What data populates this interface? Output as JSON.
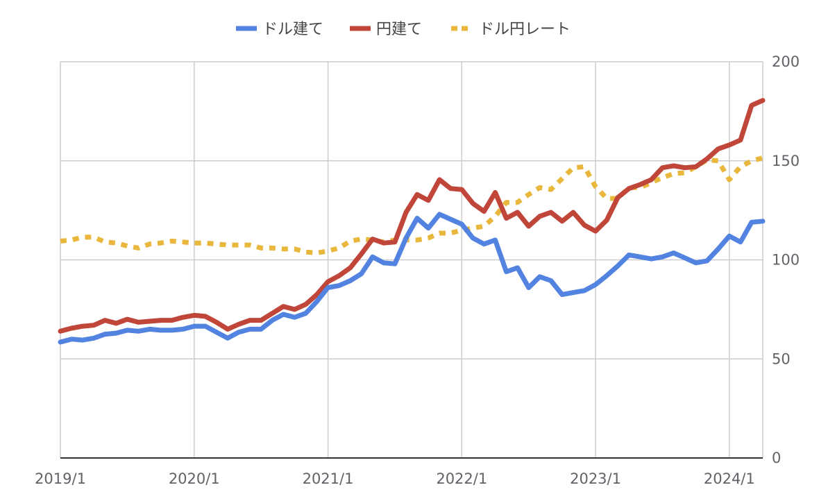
{
  "chart_data": {
    "type": "line",
    "legend": {
      "placement": "top-center",
      "items": [
        {
          "label": "ドル建て",
          "color": "#5283e0",
          "style": "solid"
        },
        {
          "label": "円建て",
          "color": "#c0463a",
          "style": "solid"
        },
        {
          "label": "ドル円レート",
          "color": "#e8b73c",
          "style": "dotted"
        }
      ]
    },
    "x_ticks": [
      "2019/1",
      "2020/1",
      "2021/1",
      "2022/1",
      "2023/1",
      "2024/1"
    ],
    "y_ticks": [
      "0",
      "50",
      "100",
      "150",
      "200"
    ],
    "ylim": [
      0,
      200
    ],
    "xlim": [
      "2019-01",
      "2024-04"
    ],
    "y_axis_position": "right",
    "grid": true,
    "x": [
      "2019-01",
      "2019-02",
      "2019-03",
      "2019-04",
      "2019-05",
      "2019-06",
      "2019-07",
      "2019-08",
      "2019-09",
      "2019-10",
      "2019-11",
      "2019-12",
      "2020-01",
      "2020-02",
      "2020-03",
      "2020-04",
      "2020-05",
      "2020-06",
      "2020-07",
      "2020-08",
      "2020-09",
      "2020-10",
      "2020-11",
      "2020-12",
      "2021-01",
      "2021-02",
      "2021-03",
      "2021-04",
      "2021-05",
      "2021-06",
      "2021-07",
      "2021-08",
      "2021-09",
      "2021-10",
      "2021-11",
      "2021-12",
      "2022-01",
      "2022-02",
      "2022-03",
      "2022-04",
      "2022-05",
      "2022-06",
      "2022-07",
      "2022-08",
      "2022-09",
      "2022-10",
      "2022-11",
      "2022-12",
      "2023-01",
      "2023-02",
      "2023-03",
      "2023-04",
      "2023-05",
      "2023-06",
      "2023-07",
      "2023-08",
      "2023-09",
      "2023-10",
      "2023-11",
      "2023-12",
      "2024-01",
      "2024-02",
      "2024-03",
      "2024-04"
    ],
    "series": [
      {
        "name": "ドル建て",
        "color": "#5283e0",
        "values": [
          58.5,
          60,
          59.5,
          60.5,
          62.5,
          63,
          64.5,
          64,
          65,
          64.5,
          64.5,
          65,
          66.5,
          66.5,
          63.5,
          60.5,
          63.5,
          65,
          65,
          69.5,
          72.5,
          71,
          73,
          79,
          86,
          87,
          89.5,
          93,
          101.5,
          98.5,
          98,
          111,
          121,
          116,
          123,
          120.5,
          118,
          111,
          108,
          110,
          94,
          96,
          86,
          91.5,
          89.5,
          82.5,
          83.5,
          84.5,
          87.5,
          92,
          97,
          102.5,
          101.5,
          100.5,
          101.5,
          103.5,
          101,
          98.5,
          99.5,
          105.5,
          112,
          109,
          119,
          119.5
        ]
      },
      {
        "name": "円建て",
        "color": "#c0463a",
        "values": [
          64,
          65.5,
          66.5,
          67,
          69.5,
          68,
          70,
          68.5,
          69,
          69.5,
          69.5,
          71,
          72,
          71.5,
          68.5,
          65,
          67.5,
          69.5,
          69.5,
          73,
          76.5,
          75,
          77.5,
          82.5,
          89,
          92,
          96,
          103,
          110.5,
          108.5,
          109,
          124,
          133,
          130,
          140.5,
          136,
          135.5,
          128.5,
          124.5,
          134,
          121,
          124,
          117,
          122,
          124,
          119.5,
          124,
          117.5,
          114.5,
          120,
          131.5,
          136,
          138,
          140.5,
          146.5,
          147.5,
          146.5,
          147,
          151,
          156,
          158,
          160.5,
          178,
          180.5
        ]
      },
      {
        "name": "ドル円レート",
        "color": "#e8b73c",
        "values": [
          109.5,
          110,
          111.5,
          111.5,
          109,
          108.5,
          107,
          106,
          108,
          108.5,
          109.5,
          109,
          108.5,
          108.5,
          108,
          107.5,
          107.5,
          107.5,
          106,
          106,
          105.5,
          105.5,
          104,
          103.5,
          104.5,
          106,
          109.5,
          110.5,
          110,
          109,
          110,
          110,
          110,
          111,
          113.5,
          113.5,
          115,
          116,
          117,
          122,
          129,
          129,
          133,
          136.5,
          135.5,
          141,
          146.5,
          147,
          137,
          131,
          131,
          136.5,
          136.5,
          139,
          141.5,
          143.5,
          144,
          147,
          150.5,
          150,
          140.5,
          147,
          150,
          151.5
        ]
      }
    ]
  }
}
